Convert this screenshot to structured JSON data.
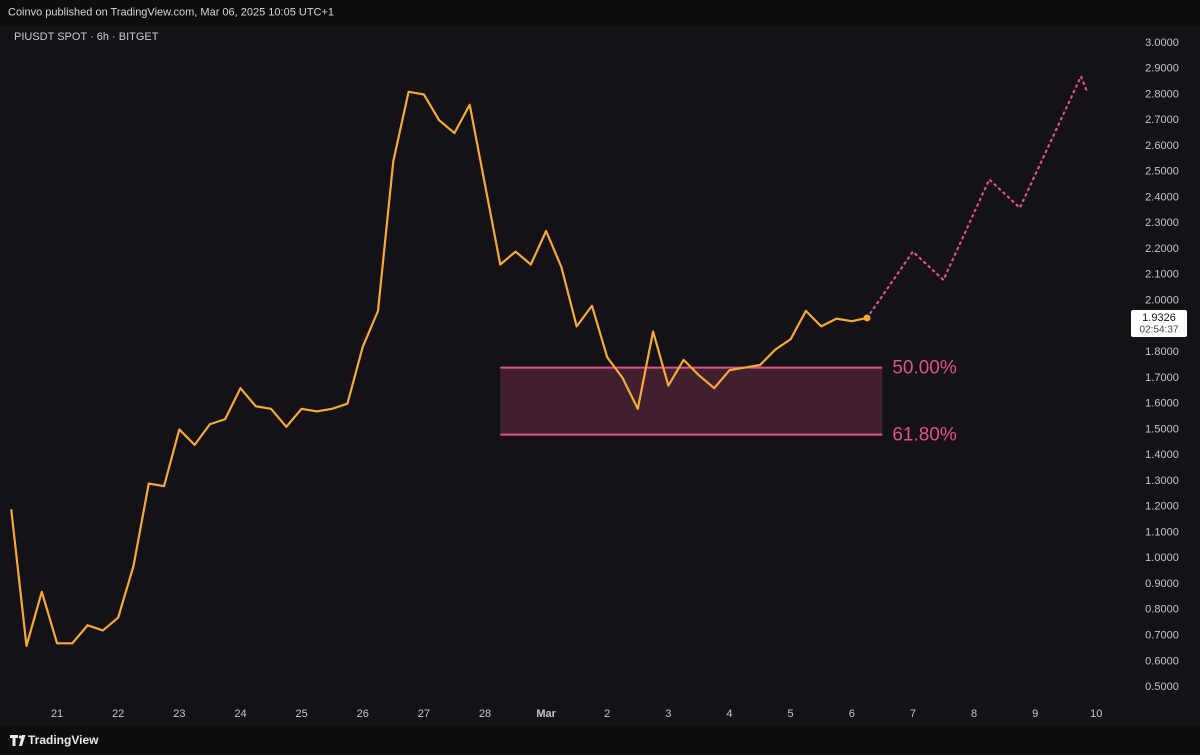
{
  "header": {
    "text": "Coinvo published on TradingView.com, Mar 06, 2025 10:05 UTC+1"
  },
  "chart_data": {
    "type": "line",
    "title": "PIUSDT SPOT · 6h · BITGET",
    "xlim": [
      20.23,
      38.47
    ],
    "ylim": [
      0.45,
      3.05
    ],
    "xticks": [
      21,
      22,
      23,
      24,
      25,
      26,
      27,
      28,
      {
        "value": 29,
        "label": "Mar"
      },
      {
        "value": 30,
        "label": "2"
      },
      {
        "value": 31,
        "label": "3"
      },
      {
        "value": 32,
        "label": "4"
      },
      {
        "value": 33,
        "label": "5"
      },
      {
        "value": 34,
        "label": "6"
      },
      {
        "value": 35,
        "label": "7"
      },
      {
        "value": 36,
        "label": "8"
      },
      {
        "value": 37,
        "label": "9"
      },
      {
        "value": 38,
        "label": "10"
      }
    ],
    "yticks": [
      {
        "value": 0.5,
        "label": "0.5000"
      },
      {
        "value": 0.6,
        "label": "0.6000"
      },
      {
        "value": 0.7,
        "label": "0.7000"
      },
      {
        "value": 0.8,
        "label": "0.8000"
      },
      {
        "value": 0.9,
        "label": "0.9000"
      },
      {
        "value": 1.0,
        "label": "1.0000"
      },
      {
        "value": 1.1,
        "label": "1.1000"
      },
      {
        "value": 1.2,
        "label": "1.2000"
      },
      {
        "value": 1.3,
        "label": "1.3000"
      },
      {
        "value": 1.4,
        "label": "1.4000"
      },
      {
        "value": 1.5,
        "label": "1.5000"
      },
      {
        "value": 1.6,
        "label": "1.6000"
      },
      {
        "value": 1.7,
        "label": "1.7000"
      },
      {
        "value": 1.8,
        "label": "1.8000"
      },
      {
        "value": 1.9,
        "label": "1.9000"
      },
      {
        "value": 2.0,
        "label": "2.0000"
      },
      {
        "value": 2.1,
        "label": "2.1000"
      },
      {
        "value": 2.2,
        "label": "2.2000"
      },
      {
        "value": 2.3,
        "label": "2.3000"
      },
      {
        "value": 2.4,
        "label": "2.4000"
      },
      {
        "value": 2.5,
        "label": "2.5000"
      },
      {
        "value": 2.6,
        "label": "2.6000"
      },
      {
        "value": 2.7,
        "label": "2.7000"
      },
      {
        "value": 2.8,
        "label": "2.8000"
      },
      {
        "value": 2.9,
        "label": "2.9000"
      },
      {
        "value": 3.0,
        "label": "3.0000"
      }
    ],
    "grid": false,
    "series": [
      {
        "color": "#f6a93b",
        "style": "solid",
        "x": [
          20.25,
          20.5,
          20.75,
          21,
          21.25,
          21.5,
          21.75,
          22,
          22.25,
          22.5,
          22.75,
          23,
          23.25,
          23.5,
          23.75,
          24,
          24.25,
          24.5,
          24.75,
          25,
          25.25,
          25.5,
          25.75,
          26,
          26.25,
          26.5,
          26.75,
          27,
          27.25,
          27.5,
          27.75,
          28,
          28.25,
          28.5,
          28.75,
          29,
          29.25,
          29.5,
          29.75,
          30,
          30.25,
          30.5,
          30.75,
          31,
          31.25,
          31.5,
          31.75,
          32,
          32.25,
          32.5,
          32.75,
          33,
          33.25,
          33.5,
          33.75,
          34,
          34.25
        ],
        "values": [
          1.19,
          0.66,
          0.87,
          0.67,
          0.67,
          0.74,
          0.72,
          0.77,
          0.97,
          1.29,
          1.28,
          1.5,
          1.44,
          1.52,
          1.54,
          1.66,
          1.59,
          1.58,
          1.51,
          1.58,
          1.57,
          1.58,
          1.6,
          1.82,
          1.96,
          2.54,
          2.81,
          2.8,
          2.7,
          2.65,
          2.76,
          2.45,
          2.14,
          2.19,
          2.14,
          2.27,
          2.13,
          1.9,
          1.98,
          1.78,
          1.7,
          1.58,
          1.88,
          1.67,
          1.77,
          1.71,
          1.66,
          1.73,
          1.74,
          1.75,
          1.81,
          1.85,
          1.96,
          1.9,
          1.93,
          1.92,
          1.9326
        ]
      },
      {
        "color": "#e0508a",
        "style": "dotted",
        "x": [
          34.25,
          35,
          35.5,
          36.25,
          36.75,
          37.75,
          37.85
        ],
        "values": [
          1.9326,
          2.19,
          2.08,
          2.47,
          2.36,
          2.87,
          2.81
        ]
      }
    ],
    "fib": {
      "x_start": 28.25,
      "x_end": 34.5,
      "color": "#e0508a",
      "levels": [
        {
          "ratio": "50.00%",
          "price": 1.74
        },
        {
          "ratio": "61.80%",
          "price": 1.48
        }
      ]
    },
    "last_price": {
      "value": 1.9326,
      "countdown": "02:54:37"
    }
  },
  "footer": {
    "brand": "TradingView"
  }
}
